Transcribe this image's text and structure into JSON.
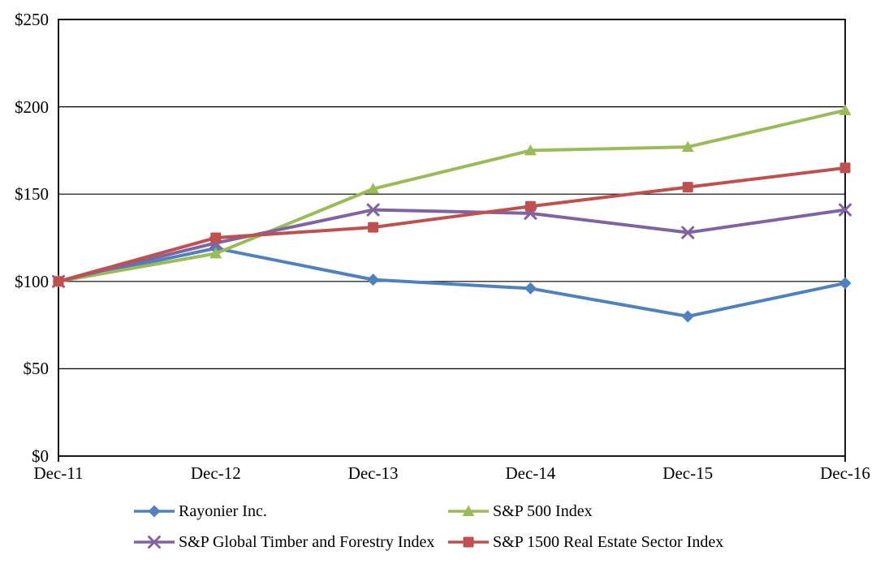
{
  "chart_data": {
    "type": "line",
    "x": [
      "Dec-11",
      "Dec-12",
      "Dec-13",
      "Dec-14",
      "Dec-15",
      "Dec-16"
    ],
    "series": [
      {
        "name": "Rayonier Inc.",
        "color": "#4F81BD",
        "marker": "diamond",
        "values": [
          100,
          119,
          101,
          96,
          80,
          99
        ]
      },
      {
        "name": "S&P 500 Index",
        "color": "#9BBB59",
        "marker": "triangle",
        "values": [
          100,
          116,
          153,
          175,
          177,
          198
        ]
      },
      {
        "name": "S&P Global Timber and Forestry Index",
        "color": "#8064A2",
        "marker": "x",
        "values": [
          100,
          122,
          141,
          139,
          128,
          141
        ]
      },
      {
        "name": "S&P 1500 Real Estate Sector Index",
        "color": "#C0504D",
        "marker": "square",
        "values": [
          100,
          125,
          131,
          143,
          154,
          165
        ]
      }
    ],
    "title": "",
    "xlabel": "",
    "ylabel": "",
    "ylim": [
      0,
      250
    ],
    "ytick_step": 50,
    "ytick_labels": [
      "$0",
      "$50",
      "$100",
      "$150",
      "$200",
      "$250"
    ],
    "grid": true,
    "axis_color": "#000000",
    "legend_position": "bottom"
  }
}
